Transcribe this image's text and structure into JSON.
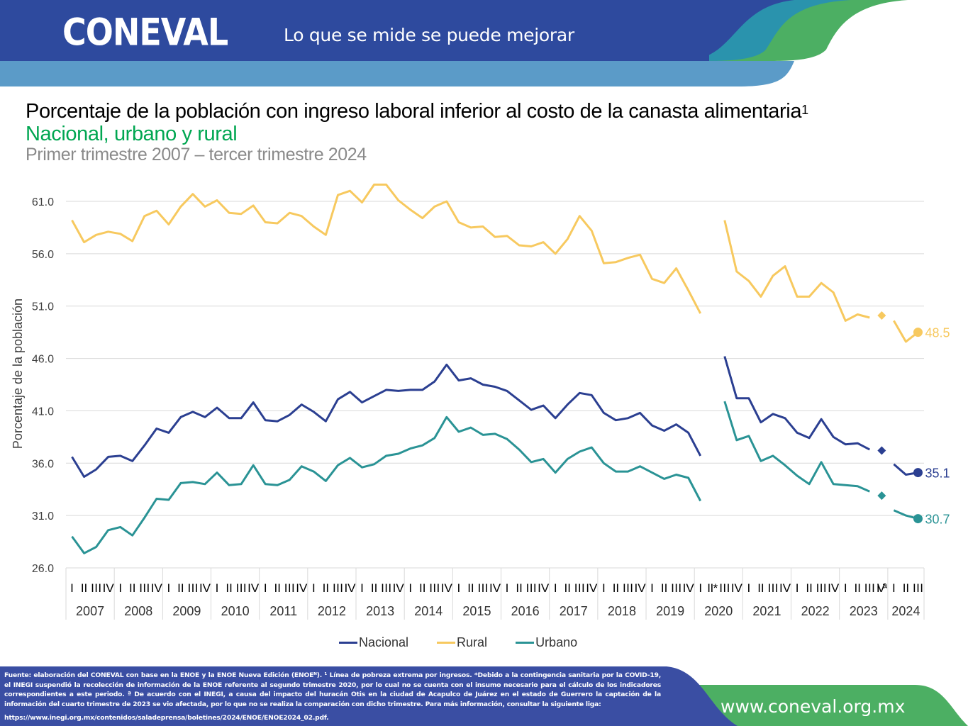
{
  "header": {
    "logo_text": "CONEVAL",
    "tagline": "Lo que se mide se puede mejorar",
    "colors": {
      "dark_blue": "#2e4a9e",
      "light_blue": "#5b9bc8",
      "teal": "#2a93ad",
      "green": "#4caf63"
    }
  },
  "titles": {
    "title": "Porcentaje de la población con ingreso laboral inferior al costo de la canasta alimentaria",
    "title_superscript": "1",
    "subtitle": "Nacional, urbano y rural",
    "period": "Primer trimestre 2007 – tercer trimestre 2024"
  },
  "chart_data": {
    "type": "line",
    "title": "Porcentaje de la población con ingreso laboral inferior al costo de la canasta alimentaria",
    "xlabel": "",
    "ylabel": "Porcentaje de la población",
    "ylim": [
      26.0,
      62.5
    ],
    "yticks": [
      "26.0",
      "31.0",
      "36.0",
      "41.0",
      "46.0",
      "51.0",
      "56.0",
      "61.0"
    ],
    "ytick_values": [
      26,
      31,
      36,
      41,
      46,
      51,
      56,
      61
    ],
    "grid": true,
    "legend_position": "bottom",
    "years": [
      "2007",
      "2008",
      "2009",
      "2010",
      "2011",
      "2012",
      "2013",
      "2014",
      "2015",
      "2016",
      "2017",
      "2018",
      "2019",
      "2020",
      "2021",
      "2022",
      "2023",
      "2024"
    ],
    "quarter_labels": [
      [
        "I",
        "II",
        "III",
        "IV"
      ],
      [
        "I",
        "II",
        "III",
        "IV"
      ],
      [
        "I",
        "II",
        "III",
        "IV"
      ],
      [
        "I",
        "II",
        "III",
        "IV"
      ],
      [
        "I",
        "II",
        "III",
        "IV"
      ],
      [
        "I",
        "II",
        "III",
        "IV"
      ],
      [
        "I",
        "II",
        "III",
        "IV"
      ],
      [
        "I",
        "II",
        "III",
        "IV"
      ],
      [
        "I",
        "II",
        "III",
        "IV"
      ],
      [
        "I",
        "II",
        "III",
        "IV"
      ],
      [
        "I",
        "II",
        "III",
        "IV"
      ],
      [
        "I",
        "II",
        "III",
        "IV"
      ],
      [
        "I",
        "II",
        "III",
        "IV"
      ],
      [
        "I",
        "II*",
        "III",
        "IV"
      ],
      [
        "I",
        "II",
        "III",
        "IV"
      ],
      [
        "I",
        "II",
        "III",
        "IV"
      ],
      [
        "I",
        "II",
        "III",
        "IVª"
      ],
      [
        "I",
        "II",
        "III"
      ]
    ],
    "notes": {
      "gap_2020_II": "No data for 2020-II (COVID-19)",
      "marker_2023_IV": "2023-IV shown as isolated diamond (not compared)",
      "final_labels": "Last point of each series labeled"
    },
    "series": [
      {
        "name": "Nacional",
        "color": "#2b3f91",
        "final_label": "35.1",
        "values": [
          36.6,
          34.7,
          35.4,
          36.6,
          36.7,
          36.2,
          37.7,
          39.3,
          38.9,
          40.4,
          40.9,
          40.4,
          41.3,
          40.3,
          40.3,
          41.8,
          40.1,
          40.0,
          40.6,
          41.6,
          40.9,
          40.0,
          42.1,
          42.8,
          41.8,
          42.4,
          43.0,
          42.9,
          43.0,
          43.0,
          43.8,
          45.4,
          43.9,
          44.1,
          43.5,
          43.3,
          42.9,
          42.0,
          41.1,
          41.5,
          40.3,
          41.6,
          42.7,
          42.5,
          40.8,
          40.1,
          40.3,
          40.8,
          39.6,
          39.1,
          39.7,
          38.9,
          36.7,
          null,
          46.2,
          42.2,
          42.2,
          39.9,
          40.7,
          40.3,
          38.9,
          38.4,
          40.2,
          38.5,
          37.8,
          37.9,
          37.3,
          37.2,
          35.9,
          34.9,
          35.1
        ]
      },
      {
        "name": "Rural",
        "color": "#f7c95f",
        "final_label": "48.5",
        "values": [
          59.2,
          57.1,
          57.8,
          58.1,
          57.9,
          57.2,
          59.6,
          60.1,
          58.8,
          60.5,
          61.7,
          60.5,
          61.1,
          59.9,
          59.8,
          60.6,
          59.0,
          58.9,
          59.9,
          59.6,
          58.6,
          57.8,
          61.6,
          62.0,
          60.9,
          62.6,
          62.6,
          61.1,
          60.2,
          59.4,
          60.5,
          61.0,
          59.0,
          58.5,
          58.6,
          57.6,
          57.7,
          56.8,
          56.7,
          57.1,
          56.0,
          57.4,
          59.6,
          58.2,
          55.1,
          55.2,
          55.6,
          55.9,
          53.6,
          53.2,
          54.6,
          52.5,
          50.3,
          null,
          59.2,
          54.3,
          53.4,
          51.9,
          53.9,
          54.8,
          51.9,
          51.9,
          53.2,
          52.3,
          49.6,
          50.2,
          49.9,
          50.1,
          49.6,
          47.6,
          48.5
        ]
      },
      {
        "name": "Urbano",
        "color": "#2a9395",
        "final_label": "30.7",
        "values": [
          29.0,
          27.4,
          28.0,
          29.6,
          29.9,
          29.1,
          30.8,
          32.6,
          32.5,
          34.1,
          34.2,
          34.0,
          35.1,
          33.9,
          34.0,
          35.8,
          34.0,
          33.9,
          34.4,
          35.7,
          35.2,
          34.3,
          35.8,
          36.5,
          35.6,
          35.9,
          36.7,
          36.9,
          37.4,
          37.7,
          38.4,
          40.4,
          39.0,
          39.4,
          38.7,
          38.8,
          38.3,
          37.3,
          36.1,
          36.4,
          35.1,
          36.4,
          37.1,
          37.5,
          36.0,
          35.2,
          35.2,
          35.7,
          35.1,
          34.5,
          34.9,
          34.6,
          32.4,
          null,
          41.9,
          38.2,
          38.6,
          36.2,
          36.7,
          35.8,
          34.8,
          34.0,
          36.1,
          34.0,
          33.9,
          33.8,
          33.3,
          32.9,
          31.5,
          31.0,
          30.7
        ]
      }
    ]
  },
  "legend": [
    {
      "label": "Nacional",
      "color": "#2b3f91"
    },
    {
      "label": "Rural",
      "color": "#f7c95f"
    },
    {
      "label": "Urbano",
      "color": "#2a9395"
    }
  ],
  "footer": {
    "note": "Fuente: elaboración del CONEVAL con base en la ENOE y la ENOE Nueva Edición (ENOEᴺ). ¹ Línea de pobreza extrema por ingresos. *Debido a la contingencia sanitaria por la COVID-19, el INEGI suspendió la recolección de información de la ENOE referente al segundo trimestre 2020, por lo cual no se cuenta con el insumo necesario para el cálculo de los indicadores correspondientes a este periodo. ª De acuerdo con el INEGI, a causa del impacto del huracán Otis en la ciudad de Acapulco de Juárez en el estado de Guerrero la captación de la información del cuarto trimestre de 2023 se vio afectada, por lo que no se realiza la comparación con dicho trimestre. Para más información, consultar la siguiente liga:",
    "link": "https://www.inegi.org.mx/contenidos/saladeprensa/boletines/2024/ENOE/ENOE2024_02.pdf.",
    "website": "www.coneval.org.mx"
  }
}
